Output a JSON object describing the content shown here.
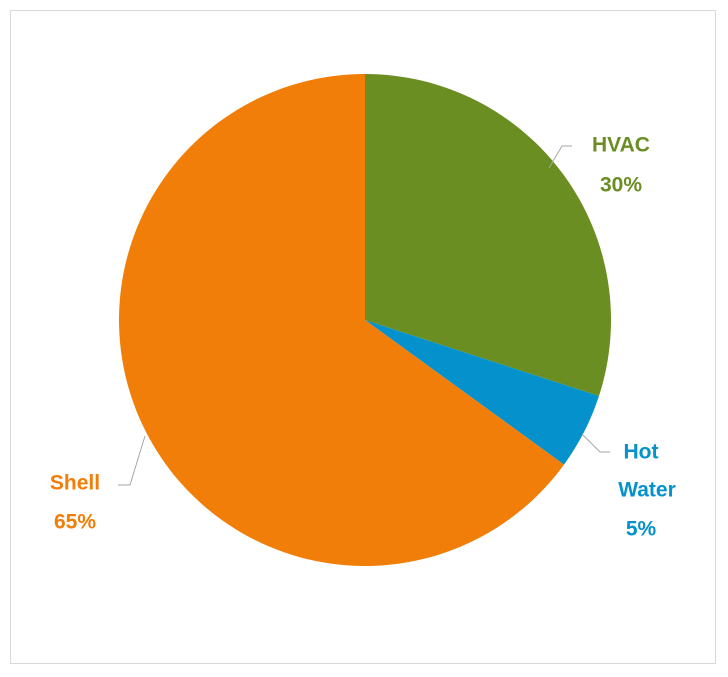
{
  "chart_data": {
    "type": "pie",
    "title": "",
    "slices": [
      {
        "name": "HVAC",
        "value": 30,
        "percent_label": "30%",
        "color": "#6a8e22"
      },
      {
        "name": "Hot Water",
        "value": 5,
        "percent_label": "5%",
        "color": "#0592cc"
      },
      {
        "name": "Shell",
        "value": 65,
        "percent_label": "65%",
        "color": "#f07e08"
      }
    ],
    "start_angle": "12 o'clock",
    "direction": "clockwise",
    "legend": "none",
    "data_labels": "outside with leader lines"
  }
}
